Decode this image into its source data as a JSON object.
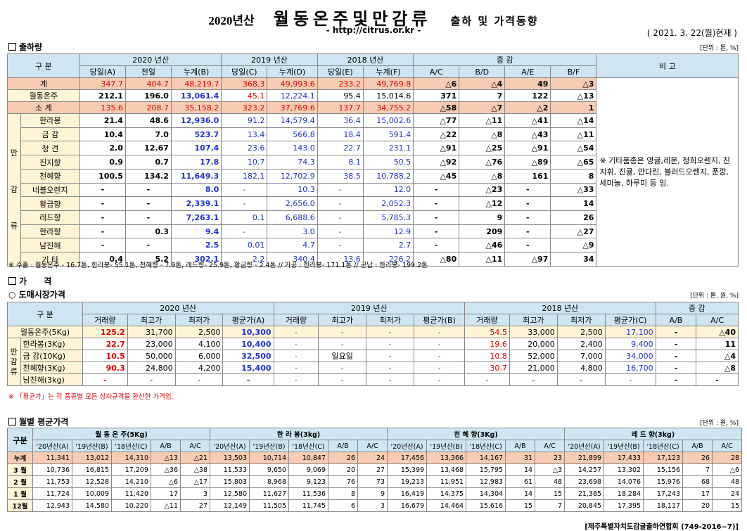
{
  "header": {
    "year": "2020년산",
    "title": "월동온주및만감류",
    "subtitle": "출하 및 가격동향",
    "url": "- http://citrus.or.kr -",
    "as_of": "( 2021. 3. 22(월)현재 )"
  },
  "shipment": {
    "section": "출하량",
    "unit": "[단위 : 톤, %]",
    "hdr_gubun": "구 분",
    "hdr_2020": "2020 년산",
    "hdr_2019": "2019 년산",
    "hdr_2018": "2018 년산",
    "hdr_change": "증 감",
    "hdr_note": "비 고",
    "sub": [
      "당일(A)",
      "전일",
      "누계(B)",
      "당일(C)",
      "누계(D)",
      "당일(E)",
      "누계(F)",
      "A/C",
      "B/D",
      "A/E",
      "B/F"
    ],
    "side_label": [
      "만",
      "감",
      "류"
    ],
    "rows": [
      {
        "name": "계",
        "v": [
          "347.7",
          "404.7",
          "48,219.7",
          "368.3",
          "49,993.6",
          "233.2",
          "49,769.8",
          "△6",
          "△4",
          "49",
          "△3"
        ]
      },
      {
        "name": "월동온주",
        "v": [
          "212.1",
          "196.0",
          "13,061.4",
          "45.1",
          "12,224.1",
          "95.4",
          "15,014.6",
          "371",
          "7",
          "122",
          "△13"
        ]
      },
      {
        "name": "소 계",
        "v": [
          "135.6",
          "208.7",
          "35,158.2",
          "323.2",
          "37,769.6",
          "137.7",
          "34,755.2",
          "△58",
          "△7",
          "△2",
          "1"
        ]
      },
      {
        "name": "한라봉",
        "v": [
          "21.4",
          "48.6",
          "12,936.0",
          "91.2",
          "14,579.4",
          "36.4",
          "15,002.6",
          "△77",
          "△11",
          "△41",
          "△14"
        ]
      },
      {
        "name": "금 감",
        "v": [
          "10.4",
          "7.0",
          "523.7",
          "13.4",
          "566.8",
          "18.4",
          "591.4",
          "△22",
          "△8",
          "△43",
          "△11"
        ]
      },
      {
        "name": "청 견",
        "v": [
          "2.0",
          "12.67",
          "107.4",
          "23.6",
          "143.0",
          "22.7",
          "231.1",
          "△91",
          "△25",
          "△91",
          "△54"
        ]
      },
      {
        "name": "진지향",
        "v": [
          "0.9",
          "0.7",
          "17.8",
          "10.7",
          "74.3",
          "8.1",
          "50.5",
          "△92",
          "△76",
          "△89",
          "△65"
        ]
      },
      {
        "name": "천혜향",
        "v": [
          "100.5",
          "134.2",
          "11,649.3",
          "182.1",
          "12,702.9",
          "38.5",
          "10,788.2",
          "△45",
          "△8",
          "161",
          "8"
        ]
      },
      {
        "name": "네블오렌지",
        "v": [
          "-",
          "-",
          "8.0",
          "-",
          "10.3",
          "-",
          "12.0",
          "-",
          "△23",
          "-",
          "△33"
        ]
      },
      {
        "name": "황금향",
        "v": [
          "-",
          "-",
          "2,339.1",
          "-",
          "2,656.0",
          "-",
          "2,052.3",
          "-",
          "△12",
          "-",
          "14"
        ]
      },
      {
        "name": "레드향",
        "v": [
          "-",
          "-",
          "7,263.1",
          "0.1",
          "6,688.6",
          "-",
          "5,785.3",
          "-",
          "9",
          "-",
          "26"
        ]
      },
      {
        "name": "한라향",
        "v": [
          "-",
          "0.3",
          "9.4",
          "-",
          "3.0",
          "-",
          "12.9",
          "-",
          "209",
          "-",
          "△27"
        ]
      },
      {
        "name": "남진해",
        "v": [
          "-",
          "-",
          "2.5",
          "0.01",
          "4.7",
          "-",
          "2.7",
          "-",
          "△46",
          "-",
          "△9"
        ]
      },
      {
        "name": "기 타",
        "v": [
          "0.4",
          "5.2",
          "302.1",
          "2.2",
          "340.4",
          "13.6",
          "226.2",
          "△80",
          "△11",
          "△97",
          "34"
        ]
      }
    ],
    "note": "※ 기타품종은 영귤,레몬, 청희오렌지, 진지휘, 진귤, 만다린, 블러드오렌지, 푼깡,세미놀, 하루미 등 임.",
    "footnote": "※ 수출 : 월동온주 - 16.7톤, 한라봉- 55.1톤, 천혜향 - 7.9톤, 레드향- 25.9톤, 황금향 - 2.4톤 // 가공 : 한라봉- 171.1톤 // 군납 : 한라봉- 199.2톤"
  },
  "price": {
    "section": "가 격",
    "subsection": "○ 도매시장가격",
    "unit": "[단위 : 톤, 원, %]",
    "hdr_gubun": "구 분",
    "hdr_2020": "2020 년산",
    "hdr_2019": "2019 년산",
    "hdr_2018": "2018 년산",
    "hdr_change": "증 감",
    "sub": [
      "거래량",
      "최고가",
      "최저가",
      "평균가(A)",
      "거래량",
      "최고가",
      "최저가",
      "평균가(B)",
      "거래량",
      "최고가",
      "최저가",
      "평균가(C)",
      "A/B",
      "A/C"
    ],
    "side_label": [
      "만",
      "감",
      "류"
    ],
    "rows": [
      {
        "name": "월동온주(5Kg)",
        "v": [
          "125.2",
          "31,700",
          "2,500",
          "10,300",
          "-",
          "-",
          "-",
          "-",
          "54.5",
          "33,000",
          "2,500",
          "17,100",
          "-",
          "△40"
        ]
      },
      {
        "name": "한라봉(3Kg)",
        "v": [
          "22.7",
          "23,000",
          "4,100",
          "10,400",
          "-",
          "-",
          "-",
          "-",
          "19.6",
          "20,000",
          "2,400",
          "9,400",
          "-",
          "11"
        ]
      },
      {
        "name": "금 감(10Kg)",
        "v": [
          "10.5",
          "50,000",
          "6,000",
          "32,500",
          "-",
          "일요일",
          "-",
          "-",
          "10.8",
          "52,000",
          "7,000",
          "34,000",
          "-",
          "△4"
        ]
      },
      {
        "name": "천혜향(3Kg)",
        "v": [
          "90.3",
          "24,800",
          "4,200",
          "15,400",
          "-",
          "-",
          "-",
          "-",
          "30.7",
          "21,000",
          "4,800",
          "16,700",
          "-",
          "△8"
        ]
      },
      {
        "name": "남진해(3kg)",
        "v": [
          "-",
          "-",
          "-",
          "-",
          "-",
          "-",
          "-",
          "-",
          "-",
          "-",
          "-",
          "-",
          "-",
          "-"
        ]
      }
    ],
    "footnote": "※ 「평균가」는 각 품종별 모든 상자규격을 환산한 가격임."
  },
  "monthly": {
    "section": "월별 평균가격",
    "unit": "[단위 : 원, %]",
    "hdr_gubun": "구분",
    "groups": [
      "월 동 온 주(5Kg)",
      "한 라 봉(3kg)",
      "천 혜 향(3Kg)",
      "레 드 향(3kg)"
    ],
    "sub": [
      "'20년산(A)",
      "'19년산(B)",
      "'18년산(C)",
      "A/B",
      "A/C"
    ],
    "rows": [
      {
        "name": "누계",
        "v": [
          "11,341",
          "13,012",
          "14,310",
          "△13",
          "△21",
          "13,503",
          "10,714",
          "10,847",
          "26",
          "24",
          "17,456",
          "13,366",
          "14,167",
          "31",
          "23",
          "21,899",
          "17,433",
          "17,123",
          "26",
          "28"
        ]
      },
      {
        "name": "3 월",
        "v": [
          "10,736",
          "16,815",
          "17,209",
          "△36",
          "△38",
          "11,533",
          "9,650",
          "9,069",
          "20",
          "27",
          "15,399",
          "13,468",
          "15,795",
          "14",
          "△3",
          "14,257",
          "13,302",
          "15,156",
          "7",
          "△6"
        ]
      },
      {
        "name": "2 월",
        "v": [
          "11,753",
          "12,528",
          "14,210",
          "△6",
          "△17",
          "15,803",
          "8,968",
          "9,123",
          "76",
          "73",
          "19,213",
          "11,951",
          "12,983",
          "61",
          "48",
          "23,698",
          "14,076",
          "15,976",
          "68",
          "48"
        ]
      },
      {
        "name": "1 월",
        "v": [
          "11,724",
          "10,009",
          "11,420",
          "17",
          "3",
          "12,580",
          "11,627",
          "11,536",
          "8",
          "9",
          "16,419",
          "14,375",
          "14,304",
          "14",
          "15",
          "21,385",
          "18,284",
          "17,243",
          "17",
          "24"
        ]
      },
      {
        "name": "12월",
        "v": [
          "12,943",
          "14,580",
          "10,220",
          "△11",
          "27",
          "12,149",
          "11,505",
          "11,745",
          "6",
          "3",
          "16,679",
          "14,464",
          "15,616",
          "15",
          "7",
          "20,845",
          "17,395",
          "18,117",
          "20",
          "15"
        ]
      }
    ],
    "footer": "[제주특별자치도감귤출하연합회 (749-2016~7)]"
  },
  "colors": {
    "header_bg": "#cfe5f2",
    "row_bg": "#fff5d6",
    "total_bg": "#f8cbb3",
    "red": "#e00000",
    "blue": "#1f2fd6"
  }
}
